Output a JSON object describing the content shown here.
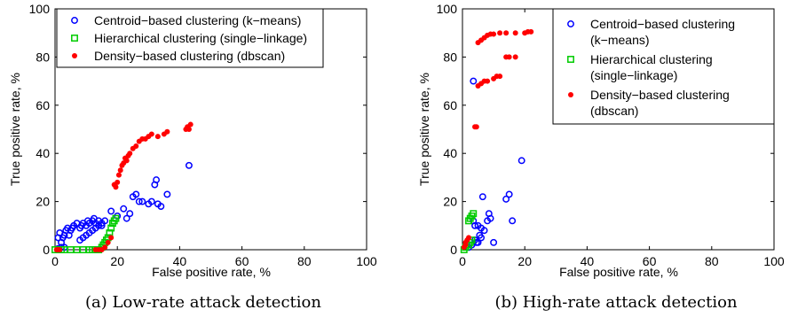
{
  "chart_data": [
    {
      "type": "scatter",
      "caption": "(a) Low-rate attack detection",
      "xlabel": "False positive rate, %",
      "ylabel": "True positive rate, %",
      "xlim": [
        0,
        100
      ],
      "ylim": [
        0,
        100
      ],
      "xticks": [
        "0",
        "20",
        "40",
        "60",
        "80",
        "100"
      ],
      "yticks": [
        "0",
        "20",
        "40",
        "60",
        "80",
        "100"
      ],
      "grid": false,
      "legend_position": "top-right",
      "series": [
        {
          "name": "Centroid−based clustering (k−means)",
          "marker": "circle-open",
          "color": "#0000ff",
          "points": [
            [
              1,
              5
            ],
            [
              1.5,
              7
            ],
            [
              2,
              3
            ],
            [
              2.5,
              5
            ],
            [
              3,
              6
            ],
            [
              3.5,
              8
            ],
            [
              4,
              9
            ],
            [
              4.5,
              6
            ],
            [
              5,
              8
            ],
            [
              5.5,
              9
            ],
            [
              6,
              10
            ],
            [
              7,
              11
            ],
            [
              8,
              9
            ],
            [
              8.5,
              10
            ],
            [
              9,
              11
            ],
            [
              10,
              10
            ],
            [
              10.5,
              12
            ],
            [
              11,
              11
            ],
            [
              12,
              12
            ],
            [
              12.5,
              13
            ],
            [
              13,
              11
            ],
            [
              14,
              12
            ],
            [
              15,
              11
            ],
            [
              16,
              12
            ],
            [
              9,
              5
            ],
            [
              10,
              6
            ],
            [
              8,
              4
            ],
            [
              11,
              7
            ],
            [
              12,
              8
            ],
            [
              13,
              9
            ],
            [
              14,
              10
            ],
            [
              15,
              10
            ],
            [
              18,
              16
            ],
            [
              20,
              14
            ],
            [
              22,
              17
            ],
            [
              23,
              13
            ],
            [
              24,
              15
            ],
            [
              25,
              22
            ],
            [
              26,
              23
            ],
            [
              27,
              20
            ],
            [
              28,
              20
            ],
            [
              30,
              19
            ],
            [
              31,
              20
            ],
            [
              32,
              27
            ],
            [
              32.5,
              29
            ],
            [
              33,
              19
            ],
            [
              34,
              18
            ],
            [
              36,
              23
            ],
            [
              43,
              35
            ],
            [
              2,
              1
            ],
            [
              3,
              1
            ],
            [
              1,
              0.5
            ]
          ]
        },
        {
          "name": "Hierarchical clustering (single−linkage)",
          "marker": "square-open",
          "color": "#00cc00",
          "points": [
            [
              0,
              0
            ],
            [
              1,
              0
            ],
            [
              2,
              0
            ],
            [
              3,
              0
            ],
            [
              5,
              0
            ],
            [
              7,
              0
            ],
            [
              9,
              0
            ],
            [
              11,
              0
            ],
            [
              12,
              0
            ],
            [
              13,
              0
            ],
            [
              14,
              0
            ],
            [
              15,
              1
            ],
            [
              15.5,
              2
            ],
            [
              16,
              3
            ],
            [
              16.5,
              4
            ],
            [
              17,
              5
            ],
            [
              17.5,
              7
            ],
            [
              18,
              9
            ],
            [
              18.5,
              11
            ],
            [
              19,
              12
            ],
            [
              19.5,
              13
            ]
          ]
        },
        {
          "name": "Density−based clustering (dbscan)",
          "marker": "dot-filled",
          "color": "#ff0000",
          "points": [
            [
              0.5,
              0
            ],
            [
              1,
              0
            ],
            [
              1.5,
              0
            ],
            [
              13,
              0
            ],
            [
              14,
              0
            ],
            [
              15,
              0
            ],
            [
              16,
              1
            ],
            [
              17,
              3
            ],
            [
              18,
              5
            ],
            [
              19,
              27
            ],
            [
              19.5,
              26
            ],
            [
              20,
              28
            ],
            [
              20.5,
              31
            ],
            [
              21,
              33
            ],
            [
              21.5,
              35
            ],
            [
              22,
              36
            ],
            [
              22.5,
              38
            ],
            [
              23,
              37
            ],
            [
              23.5,
              39
            ],
            [
              24,
              40
            ],
            [
              25,
              42
            ],
            [
              26,
              43
            ],
            [
              27,
              45
            ],
            [
              28,
              46
            ],
            [
              29,
              46
            ],
            [
              30,
              47
            ],
            [
              31,
              48
            ],
            [
              33,
              47
            ],
            [
              35,
              48
            ],
            [
              36,
              49
            ],
            [
              42,
              50
            ],
            [
              42.5,
              51
            ],
            [
              43,
              50
            ],
            [
              43.5,
              52
            ]
          ]
        }
      ]
    },
    {
      "type": "scatter",
      "caption": "(b) High-rate attack detection",
      "xlabel": "False positive rate, %",
      "ylabel": "True positive rate, %",
      "xlim": [
        0,
        100
      ],
      "ylim": [
        0,
        100
      ],
      "xticks": [
        "0",
        "20",
        "40",
        "60",
        "80",
        "100"
      ],
      "yticks": [
        "0",
        "20",
        "40",
        "60",
        "80",
        "100"
      ],
      "grid": false,
      "legend_position": "top-right",
      "series": [
        {
          "name": "Centroid−based clustering",
          "name_line2": "(k−means)",
          "marker": "circle-open",
          "color": "#0000ff",
          "points": [
            [
              3.5,
              70
            ],
            [
              19,
              37
            ],
            [
              15,
              23
            ],
            [
              14,
              21
            ],
            [
              6.5,
              22
            ],
            [
              8.5,
              15
            ],
            [
              9,
              13
            ],
            [
              8,
              12
            ],
            [
              5,
              10
            ],
            [
              6,
              9
            ],
            [
              7,
              8
            ],
            [
              4,
              4
            ],
            [
              4.5,
              3
            ],
            [
              5,
              3
            ],
            [
              3,
              2
            ],
            [
              2,
              1
            ],
            [
              16,
              12
            ],
            [
              10,
              3
            ],
            [
              3.5,
              12
            ],
            [
              4,
              10
            ],
            [
              5.5,
              6
            ],
            [
              6,
              5
            ]
          ]
        },
        {
          "name": "Hierarchical clustering",
          "name_line2": "(single−linkage)",
          "marker": "square-open",
          "color": "#00cc00",
          "points": [
            [
              2,
              12
            ],
            [
              2.5,
              13
            ],
            [
              3,
              14
            ],
            [
              3.5,
              15
            ],
            [
              2,
              2
            ],
            [
              1,
              1
            ],
            [
              0.5,
              0
            ],
            [
              3,
              4
            ],
            [
              2.5,
              3
            ]
          ]
        },
        {
          "name": "Density−based clustering",
          "name_line2": "(dbscan)",
          "marker": "dot-filled",
          "color": "#ff0000",
          "points": [
            [
              4,
              51
            ],
            [
              4.5,
              51
            ],
            [
              5,
              86
            ],
            [
              6,
              87
            ],
            [
              7,
              88
            ],
            [
              8,
              89
            ],
            [
              9,
              89.5
            ],
            [
              10,
              89.5
            ],
            [
              12,
              90
            ],
            [
              14,
              90
            ],
            [
              17,
              90
            ],
            [
              20,
              90
            ],
            [
              21,
              90.5
            ],
            [
              22,
              90.5
            ],
            [
              5,
              68
            ],
            [
              6,
              69
            ],
            [
              7,
              70
            ],
            [
              8,
              70
            ],
            [
              10,
              71
            ],
            [
              11,
              72
            ],
            [
              12,
              72
            ],
            [
              14,
              80
            ],
            [
              15,
              80
            ],
            [
              17,
              80
            ],
            [
              1,
              2
            ],
            [
              1.5,
              4
            ],
            [
              2,
              5
            ],
            [
              0.5,
              1
            ],
            [
              1,
              3
            ]
          ]
        }
      ]
    }
  ]
}
